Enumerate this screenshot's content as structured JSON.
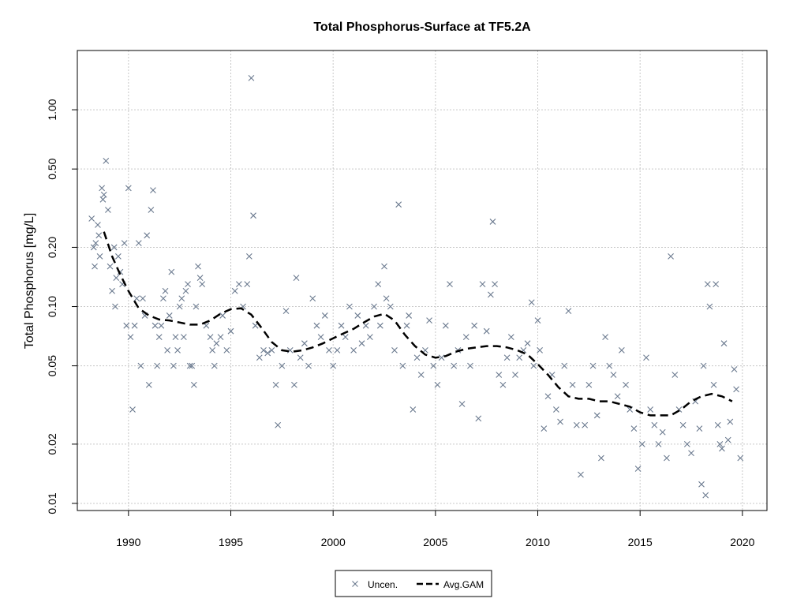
{
  "chart_data": {
    "type": "scatter",
    "title": "Total Phosphorus-Surface at TF5.2A",
    "xlabel": "",
    "ylabel": "Total Phosphorus [mg/L]",
    "xlim": [
      1987.5,
      2021.2
    ],
    "ylim": [
      0.0092,
      2.0
    ],
    "y_scale": "log",
    "grid": true,
    "x_ticks": [
      1990,
      1995,
      2000,
      2005,
      2010,
      2015,
      2020
    ],
    "x_tick_labels": [
      "1990",
      "1995",
      "2000",
      "2005",
      "2010",
      "2015",
      "2020"
    ],
    "y_ticks": [
      0.01,
      0.02,
      0.05,
      0.1,
      0.2,
      0.5,
      1.0
    ],
    "y_tick_labels": [
      "0.01",
      "0.02",
      "0.05",
      "0.10",
      "0.20",
      "0.50",
      "1.00"
    ],
    "legend": {
      "placement": "bottom-center",
      "entries": [
        {
          "label": "Uncen.",
          "symbol": "x",
          "color": "#6b7a8f"
        },
        {
          "label": "Avg.GAM",
          "symbol": "dashed-line",
          "color": "#000000"
        }
      ]
    },
    "series": [
      {
        "name": "Uncen.",
        "kind": "points",
        "color": "#6b7a8f",
        "points": [
          [
            1988.2,
            0.28
          ],
          [
            1988.3,
            0.2
          ],
          [
            1988.35,
            0.16
          ],
          [
            1988.4,
            0.21
          ],
          [
            1988.5,
            0.26
          ],
          [
            1988.55,
            0.23
          ],
          [
            1988.6,
            0.18
          ],
          [
            1988.7,
            0.4
          ],
          [
            1988.75,
            0.35
          ],
          [
            1988.8,
            0.37
          ],
          [
            1988.9,
            0.55
          ],
          [
            1989.0,
            0.31
          ],
          [
            1989.1,
            0.16
          ],
          [
            1989.2,
            0.12
          ],
          [
            1989.3,
            0.2
          ],
          [
            1989.35,
            0.1
          ],
          [
            1989.4,
            0.14
          ],
          [
            1989.5,
            0.18
          ],
          [
            1989.6,
            0.15
          ],
          [
            1989.7,
            0.13
          ],
          [
            1989.8,
            0.21
          ],
          [
            1989.9,
            0.08
          ],
          [
            1990.0,
            0.4
          ],
          [
            1990.1,
            0.07
          ],
          [
            1990.2,
            0.03
          ],
          [
            1990.3,
            0.08
          ],
          [
            1990.4,
            0.11
          ],
          [
            1990.5,
            0.21
          ],
          [
            1990.6,
            0.05
          ],
          [
            1990.7,
            0.11
          ],
          [
            1990.8,
            0.09
          ],
          [
            1990.9,
            0.23
          ],
          [
            1991.0,
            0.04
          ],
          [
            1991.1,
            0.31
          ],
          [
            1991.2,
            0.39
          ],
          [
            1991.3,
            0.08
          ],
          [
            1991.4,
            0.05
          ],
          [
            1991.5,
            0.07
          ],
          [
            1991.6,
            0.08
          ],
          [
            1991.7,
            0.11
          ],
          [
            1991.8,
            0.12
          ],
          [
            1991.9,
            0.06
          ],
          [
            1992.0,
            0.09
          ],
          [
            1992.1,
            0.15
          ],
          [
            1992.2,
            0.05
          ],
          [
            1992.3,
            0.07
          ],
          [
            1992.4,
            0.06
          ],
          [
            1992.5,
            0.1
          ],
          [
            1992.6,
            0.11
          ],
          [
            1992.7,
            0.07
          ],
          [
            1992.8,
            0.12
          ],
          [
            1992.9,
            0.13
          ],
          [
            1993.0,
            0.05
          ],
          [
            1993.1,
            0.05
          ],
          [
            1993.2,
            0.04
          ],
          [
            1993.3,
            0.1
          ],
          [
            1993.4,
            0.16
          ],
          [
            1993.5,
            0.14
          ],
          [
            1993.6,
            0.13
          ],
          [
            1993.8,
            0.08
          ],
          [
            1994.0,
            0.07
          ],
          [
            1994.1,
            0.06
          ],
          [
            1994.2,
            0.05
          ],
          [
            1994.3,
            0.065
          ],
          [
            1994.5,
            0.07
          ],
          [
            1994.6,
            0.09
          ],
          [
            1994.8,
            0.06
          ],
          [
            1995.0,
            0.075
          ],
          [
            1995.2,
            0.12
          ],
          [
            1995.4,
            0.13
          ],
          [
            1995.6,
            0.1
          ],
          [
            1995.8,
            0.13
          ],
          [
            1995.9,
            0.18
          ],
          [
            1996.0,
            1.45
          ],
          [
            1996.1,
            0.29
          ],
          [
            1996.2,
            0.08
          ],
          [
            1996.4,
            0.055
          ],
          [
            1996.6,
            0.06
          ],
          [
            1996.8,
            0.058
          ],
          [
            1997.0,
            0.06
          ],
          [
            1997.2,
            0.04
          ],
          [
            1997.3,
            0.025
          ],
          [
            1997.5,
            0.05
          ],
          [
            1997.7,
            0.095
          ],
          [
            1997.9,
            0.06
          ],
          [
            1998.1,
            0.04
          ],
          [
            1998.2,
            0.14
          ],
          [
            1998.4,
            0.055
          ],
          [
            1998.6,
            0.065
          ],
          [
            1998.8,
            0.05
          ],
          [
            1999.0,
            0.11
          ],
          [
            1999.2,
            0.08
          ],
          [
            1999.4,
            0.07
          ],
          [
            1999.6,
            0.09
          ],
          [
            1999.8,
            0.06
          ],
          [
            2000.0,
            0.05
          ],
          [
            2000.2,
            0.06
          ],
          [
            2000.4,
            0.08
          ],
          [
            2000.6,
            0.07
          ],
          [
            2000.8,
            0.1
          ],
          [
            2001.0,
            0.06
          ],
          [
            2001.2,
            0.09
          ],
          [
            2001.4,
            0.065
          ],
          [
            2001.6,
            0.08
          ],
          [
            2001.8,
            0.07
          ],
          [
            2002.0,
            0.1
          ],
          [
            2002.2,
            0.13
          ],
          [
            2002.3,
            0.08
          ],
          [
            2002.5,
            0.16
          ],
          [
            2002.6,
            0.11
          ],
          [
            2002.8,
            0.1
          ],
          [
            2003.0,
            0.06
          ],
          [
            2003.2,
            0.33
          ],
          [
            2003.4,
            0.05
          ],
          [
            2003.6,
            0.08
          ],
          [
            2003.7,
            0.09
          ],
          [
            2003.9,
            0.03
          ],
          [
            2004.1,
            0.055
          ],
          [
            2004.3,
            0.045
          ],
          [
            2004.5,
            0.06
          ],
          [
            2004.7,
            0.085
          ],
          [
            2004.9,
            0.05
          ],
          [
            2005.1,
            0.04
          ],
          [
            2005.3,
            0.055
          ],
          [
            2005.5,
            0.08
          ],
          [
            2005.7,
            0.13
          ],
          [
            2005.9,
            0.05
          ],
          [
            2006.1,
            0.06
          ],
          [
            2006.3,
            0.032
          ],
          [
            2006.5,
            0.07
          ],
          [
            2006.7,
            0.05
          ],
          [
            2006.9,
            0.08
          ],
          [
            2007.1,
            0.027
          ],
          [
            2007.3,
            0.13
          ],
          [
            2007.5,
            0.075
          ],
          [
            2007.7,
            0.115
          ],
          [
            2007.8,
            0.27
          ],
          [
            2007.9,
            0.13
          ],
          [
            2008.1,
            0.045
          ],
          [
            2008.3,
            0.04
          ],
          [
            2008.5,
            0.055
          ],
          [
            2008.7,
            0.07
          ],
          [
            2008.9,
            0.045
          ],
          [
            2009.1,
            0.055
          ],
          [
            2009.3,
            0.06
          ],
          [
            2009.5,
            0.065
          ],
          [
            2009.7,
            0.105
          ],
          [
            2009.8,
            0.05
          ],
          [
            2010.0,
            0.085
          ],
          [
            2010.1,
            0.06
          ],
          [
            2010.3,
            0.024
          ],
          [
            2010.5,
            0.035
          ],
          [
            2010.7,
            0.045
          ],
          [
            2010.9,
            0.03
          ],
          [
            2011.1,
            0.026
          ],
          [
            2011.3,
            0.05
          ],
          [
            2011.5,
            0.095
          ],
          [
            2011.7,
            0.04
          ],
          [
            2011.9,
            0.025
          ],
          [
            2012.1,
            0.014
          ],
          [
            2012.3,
            0.025
          ],
          [
            2012.5,
            0.04
          ],
          [
            2012.7,
            0.05
          ],
          [
            2012.9,
            0.028
          ],
          [
            2013.1,
            0.017
          ],
          [
            2013.3,
            0.07
          ],
          [
            2013.5,
            0.05
          ],
          [
            2013.7,
            0.045
          ],
          [
            2013.9,
            0.035
          ],
          [
            2014.1,
            0.06
          ],
          [
            2014.3,
            0.04
          ],
          [
            2014.5,
            0.03
          ],
          [
            2014.7,
            0.024
          ],
          [
            2014.9,
            0.015
          ],
          [
            2015.1,
            0.02
          ],
          [
            2015.3,
            0.055
          ],
          [
            2015.5,
            0.03
          ],
          [
            2015.7,
            0.025
          ],
          [
            2015.9,
            0.02
          ],
          [
            2016.1,
            0.023
          ],
          [
            2016.3,
            0.017
          ],
          [
            2016.5,
            0.18
          ],
          [
            2016.7,
            0.045
          ],
          [
            2016.9,
            0.03
          ],
          [
            2017.1,
            0.025
          ],
          [
            2017.3,
            0.02
          ],
          [
            2017.5,
            0.018
          ],
          [
            2017.7,
            0.033
          ],
          [
            2017.9,
            0.024
          ],
          [
            2018.0,
            0.0125
          ],
          [
            2018.1,
            0.05
          ],
          [
            2018.2,
            0.011
          ],
          [
            2018.3,
            0.13
          ],
          [
            2018.4,
            0.1
          ],
          [
            2018.6,
            0.04
          ],
          [
            2018.7,
            0.13
          ],
          [
            2018.8,
            0.025
          ],
          [
            2018.9,
            0.02
          ],
          [
            2019.0,
            0.019
          ],
          [
            2019.1,
            0.065
          ],
          [
            2019.3,
            0.021
          ],
          [
            2019.4,
            0.026
          ],
          [
            2019.6,
            0.048
          ],
          [
            2019.7,
            0.038
          ],
          [
            2019.9,
            0.017
          ]
        ]
      },
      {
        "name": "Avg.GAM",
        "kind": "line",
        "style": "dashed",
        "color": "#000000",
        "points": [
          [
            1988.8,
            0.24
          ],
          [
            1989.2,
            0.18
          ],
          [
            1989.6,
            0.145
          ],
          [
            1990.0,
            0.12
          ],
          [
            1990.5,
            0.098
          ],
          [
            1991.0,
            0.09
          ],
          [
            1991.5,
            0.086
          ],
          [
            1992.0,
            0.085
          ],
          [
            1992.5,
            0.083
          ],
          [
            1993.0,
            0.081
          ],
          [
            1993.5,
            0.081
          ],
          [
            1994.0,
            0.085
          ],
          [
            1994.5,
            0.092
          ],
          [
            1995.0,
            0.097
          ],
          [
            1995.5,
            0.098
          ],
          [
            1996.0,
            0.091
          ],
          [
            1996.5,
            0.078
          ],
          [
            1997.0,
            0.066
          ],
          [
            1997.5,
            0.06
          ],
          [
            1998.0,
            0.059
          ],
          [
            1998.5,
            0.06
          ],
          [
            1999.0,
            0.062
          ],
          [
            1999.5,
            0.065
          ],
          [
            2000.0,
            0.069
          ],
          [
            2000.5,
            0.073
          ],
          [
            2001.0,
            0.077
          ],
          [
            2001.5,
            0.083
          ],
          [
            2002.0,
            0.089
          ],
          [
            2002.5,
            0.092
          ],
          [
            2003.0,
            0.085
          ],
          [
            2003.5,
            0.072
          ],
          [
            2004.0,
            0.063
          ],
          [
            2004.5,
            0.057
          ],
          [
            2005.0,
            0.055
          ],
          [
            2005.5,
            0.056
          ],
          [
            2006.0,
            0.059
          ],
          [
            2006.5,
            0.061
          ],
          [
            2007.0,
            0.062
          ],
          [
            2007.5,
            0.063
          ],
          [
            2008.0,
            0.063
          ],
          [
            2008.5,
            0.062
          ],
          [
            2009.0,
            0.06
          ],
          [
            2009.5,
            0.057
          ],
          [
            2010.0,
            0.051
          ],
          [
            2010.5,
            0.045
          ],
          [
            2011.0,
            0.039
          ],
          [
            2011.5,
            0.035
          ],
          [
            2012.0,
            0.034
          ],
          [
            2012.5,
            0.034
          ],
          [
            2013.0,
            0.033
          ],
          [
            2013.5,
            0.033
          ],
          [
            2014.0,
            0.032
          ],
          [
            2014.5,
            0.031
          ],
          [
            2015.0,
            0.029
          ],
          [
            2015.5,
            0.028
          ],
          [
            2016.0,
            0.028
          ],
          [
            2016.5,
            0.028
          ],
          [
            2017.0,
            0.03
          ],
          [
            2017.5,
            0.033
          ],
          [
            2018.0,
            0.035
          ],
          [
            2018.5,
            0.036
          ],
          [
            2019.0,
            0.035
          ],
          [
            2019.5,
            0.033
          ]
        ]
      }
    ]
  }
}
